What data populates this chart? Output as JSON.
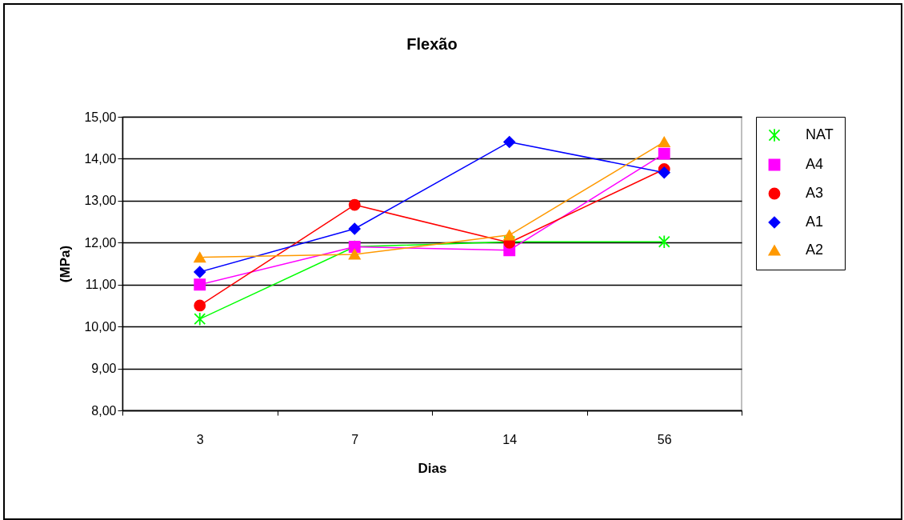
{
  "chart_data": {
    "type": "line",
    "title": "Flexão",
    "xlabel": "Dias",
    "ylabel": "(MPa)",
    "categories": [
      "3",
      "7",
      "14",
      "56"
    ],
    "series": [
      {
        "name": "NAT",
        "color": "#00ff00",
        "marker": "cross",
        "values": [
          10.18,
          11.9,
          12.02,
          12.02
        ]
      },
      {
        "name": "A4",
        "color": "#ff00ff",
        "marker": "square",
        "values": [
          11.0,
          11.9,
          11.82,
          14.12
        ]
      },
      {
        "name": "A3",
        "color": "#ff0000",
        "marker": "circle",
        "values": [
          10.5,
          12.9,
          12.0,
          13.75
        ]
      },
      {
        "name": "A1",
        "color": "#0000ff",
        "marker": "diamond",
        "values": [
          11.3,
          12.33,
          14.4,
          13.67
        ]
      },
      {
        "name": "A2",
        "color": "#ff9900",
        "marker": "triangle",
        "values": [
          11.65,
          11.72,
          12.18,
          14.4
        ]
      }
    ],
    "ylim": [
      8,
      15
    ],
    "yticks": [
      {
        "value": 8,
        "label": "8,00"
      },
      {
        "value": 9,
        "label": "9,00"
      },
      {
        "value": 10,
        "label": "10,00"
      },
      {
        "value": 11,
        "label": "11,00"
      },
      {
        "value": 12,
        "label": "12,00"
      },
      {
        "value": 13,
        "label": "13,00"
      },
      {
        "value": 14,
        "label": "14,00"
      },
      {
        "value": 15,
        "label": "15,00"
      }
    ],
    "grid": "y",
    "legend": "right"
  }
}
